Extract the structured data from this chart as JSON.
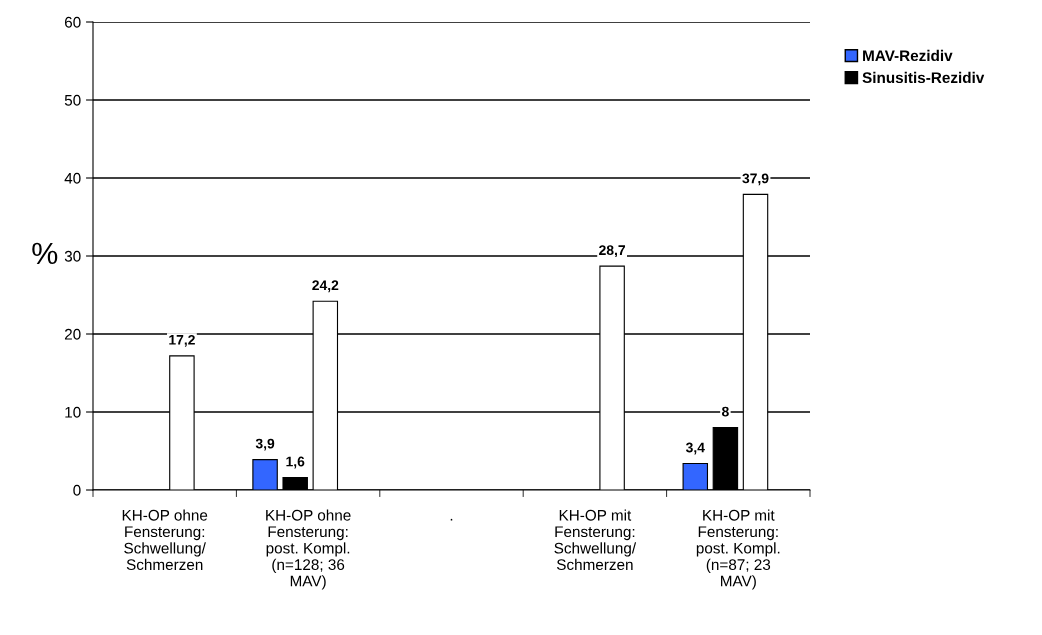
{
  "chart_data": {
    "type": "bar",
    "ylabel": "%",
    "categories": [
      "KH-OP ohne\nFensterung:\nSchwellung/\nSchmerzen",
      "KH-OP ohne\nFensterung:\npost. Kompl.\n(n=128; 36\nMAV)",
      ".",
      "KH-OP mit\nFensterung:\nSchwellung/\nSchmerzen",
      "KH-OP mit\nFensterung:\npost. Kompl.\n(n=87; 23\nMAV)"
    ],
    "series": [
      {
        "name": "MAV-Rezidiv",
        "color": "#3366ff",
        "values": [
          null,
          3.9,
          null,
          null,
          3.4
        ],
        "value_labels": [
          null,
          "3,9",
          null,
          null,
          "3,4"
        ]
      },
      {
        "name": "Sinusitis-Rezidiv",
        "color": "#000000",
        "values": [
          null,
          1.6,
          null,
          null,
          8
        ],
        "value_labels": [
          null,
          "1,6",
          null,
          null,
          "8"
        ]
      },
      {
        "color": "#ffffff",
        "values": [
          17.2,
          24.2,
          null,
          28.7,
          37.9
        ],
        "value_labels": [
          "17,2",
          "24,2",
          null,
          "28,7",
          "37,9"
        ]
      }
    ],
    "ylim": [
      0,
      60
    ],
    "yticks": [
      0,
      10,
      20,
      30,
      40,
      50,
      60
    ],
    "grid": "y",
    "legend": "top right"
  }
}
